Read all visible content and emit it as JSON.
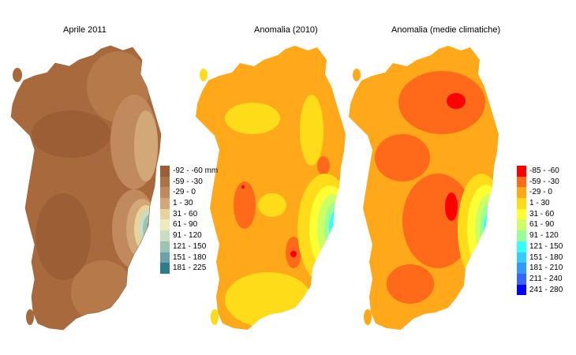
{
  "panels": [
    {
      "id": "precip",
      "title": "Aprile 2011"
    },
    {
      "id": "anom2010",
      "title": "Anomalia (2010)"
    },
    {
      "id": "anomclim",
      "title": "Anomalia (medie climatiche)"
    }
  ],
  "legend_precip": {
    "items": [
      {
        "label": "-92 - -60 mm",
        "color": "#9c5e34"
      },
      {
        "label": "-59 - -30",
        "color": "#ad7247"
      },
      {
        "label": "-29 - 0",
        "color": "#c08a5c"
      },
      {
        "label": "1 - 30",
        "color": "#d3a878"
      },
      {
        "label": "31 - 60",
        "color": "#ead29c"
      },
      {
        "label": "61 - 90",
        "color": "#eeeabf"
      },
      {
        "label": "91 - 120",
        "color": "#c8ddc2"
      },
      {
        "label": "121 - 150",
        "color": "#9cc4b5"
      },
      {
        "label": "151 - 180",
        "color": "#6aa3a5"
      },
      {
        "label": "181 - 225",
        "color": "#2d7d8c"
      }
    ]
  },
  "legend_anomaly": {
    "items": [
      {
        "label": "-85 - -60",
        "color": "#ff0000"
      },
      {
        "label": "-59 - -30",
        "color": "#ff6a1a"
      },
      {
        "label": "-29 - 0",
        "color": "#ffa81a"
      },
      {
        "label": "1 - 30",
        "color": "#ffdc1a"
      },
      {
        "label": "31 - 60",
        "color": "#ffff33"
      },
      {
        "label": "61 - 90",
        "color": "#ccff66"
      },
      {
        "label": "91 - 120",
        "color": "#99ff99"
      },
      {
        "label": "121 - 150",
        "color": "#33ffff"
      },
      {
        "label": "151 - 180",
        "color": "#33ccff"
      },
      {
        "label": "181 - 210",
        "color": "#3399ff"
      },
      {
        "label": "211 - 240",
        "color": "#3366ff"
      },
      {
        "label": "241 - 280",
        "color": "#0000ff"
      }
    ]
  }
}
